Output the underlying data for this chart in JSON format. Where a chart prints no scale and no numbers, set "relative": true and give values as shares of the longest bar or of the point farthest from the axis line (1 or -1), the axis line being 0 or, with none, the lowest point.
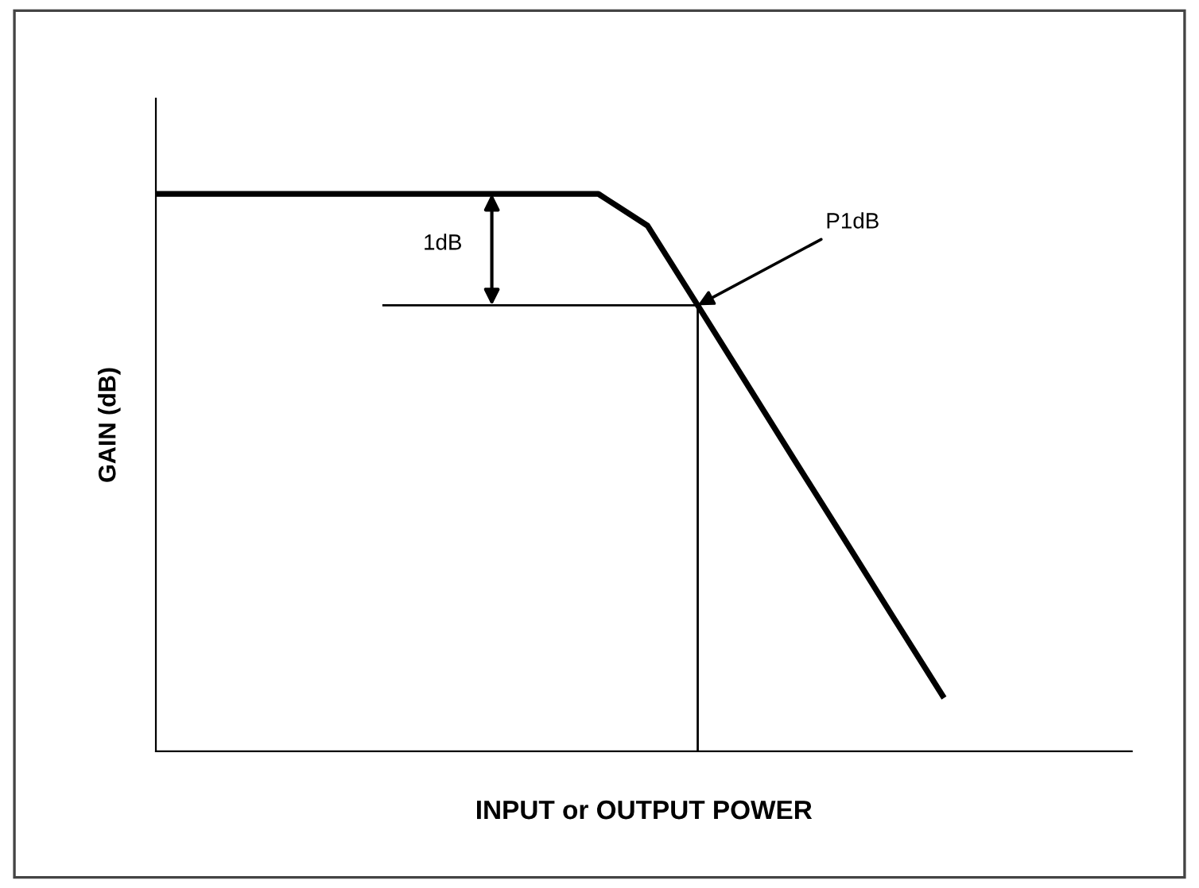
{
  "chart_data": {
    "type": "line",
    "relative": true,
    "tick_labels": false,
    "xlabel": "INPUT or OUTPUT POWER",
    "ylabel": "GAIN (dB)",
    "categories": [
      null,
      null,
      null,
      null,
      null,
      null,
      null,
      null,
      null,
      null,
      null,
      null,
      null,
      null,
      null,
      null,
      null
    ],
    "series": [
      {
        "color": "#000000",
        "values": [
          1,
          1,
          1,
          1,
          1,
          1,
          1,
          1,
          1,
          1,
          0.943,
          0.803,
          0.662,
          0.521,
          0.381,
          0.24,
          0.1
        ]
      }
    ],
    "ref_lines": [
      {
        "axis": "y",
        "value": 0.8,
        "color": "#000000"
      }
    ],
    "annotations": [
      "1dB",
      "P1dB"
    ],
    "grid": false,
    "marker": "none",
    "line_style": "solid"
  }
}
